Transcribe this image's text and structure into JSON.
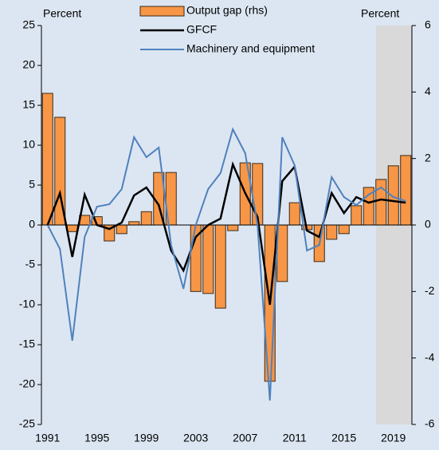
{
  "chart_data": {
    "type": "combo",
    "y_label": "Percent",
    "y2_label": "Percent",
    "x": [
      1991,
      1992,
      1993,
      1994,
      1995,
      1996,
      1997,
      1998,
      1999,
      2000,
      2001,
      2002,
      2003,
      2004,
      2005,
      2006,
      2007,
      2008,
      2009,
      2010,
      2011,
      2012,
      2013,
      2014,
      2015,
      2016,
      2017,
      2018,
      2019,
      2020
    ],
    "xlim": [
      1990.5,
      2020.5
    ],
    "xticks": [
      1991,
      1995,
      1999,
      2003,
      2007,
      2011,
      2015,
      2019
    ],
    "ylim": [
      -25,
      25
    ],
    "yticks": [
      -25,
      -20,
      -15,
      -10,
      -5,
      0,
      5,
      10,
      15,
      20,
      25
    ],
    "y2lim": [
      -6,
      6
    ],
    "y2ticks": [
      -6,
      -4,
      -2,
      0,
      2,
      4,
      6
    ],
    "shaded_xrange": [
      2017.6,
      2020.5
    ],
    "shade_color": "#d9d9d9",
    "background": "#dce6f2",
    "series": [
      {
        "name": "Output gap (rhs)",
        "type": "bar",
        "axis": "y2",
        "color": "#f79646",
        "values": [
          3.96,
          3.24,
          -0.2,
          0.29,
          0.25,
          -0.48,
          -0.26,
          0.1,
          0.4,
          1.58,
          1.58,
          0,
          -2.0,
          -2.06,
          -2.5,
          -0.17,
          1.87,
          1.85,
          -4.7,
          -1.7,
          0.67,
          -0.14,
          -1.1,
          -0.43,
          -0.26,
          0.58,
          1.13,
          1.37,
          1.78,
          2.09
        ]
      },
      {
        "name": "GFCF",
        "type": "line",
        "axis": "y",
        "color": "#000000",
        "values": [
          0,
          4,
          -4,
          3.8,
          0,
          -0.5,
          0.3,
          3.7,
          4.7,
          2.5,
          -3.2,
          -5.7,
          -1.5,
          0,
          0.8,
          7.6,
          4,
          1,
          -10,
          5.5,
          7.3,
          -0.7,
          -1.5,
          4,
          1.5,
          3.5,
          2.8,
          3.2,
          3,
          2.8
        ]
      },
      {
        "name": "Machinery and equipment",
        "type": "line",
        "axis": "y",
        "color": "#4f81bd",
        "values": [
          0,
          -3,
          -14.5,
          -1.5,
          2.3,
          2.6,
          4.5,
          11,
          8.5,
          9.7,
          -2.5,
          -8,
          0,
          4.5,
          6.5,
          12,
          9,
          0,
          -22,
          11,
          7.5,
          -3.2,
          -2.5,
          6,
          3.5,
          2.5,
          3.8,
          4.7,
          3.5,
          3
        ]
      }
    ]
  }
}
